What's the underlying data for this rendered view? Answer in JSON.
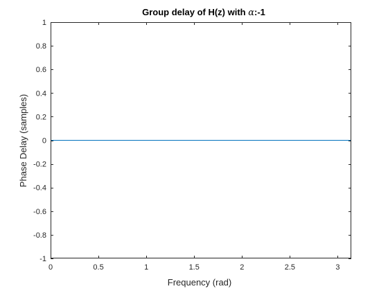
{
  "chart_data": {
    "type": "line",
    "title_prefix": "Group delay of H(z) with ",
    "title_symbol": "α",
    "title_suffix": ":-1",
    "xlabel": "Frequency (rad)",
    "ylabel": "Phase Delay (samples)",
    "xlim": [
      0,
      3.1416
    ],
    "ylim": [
      -1,
      1
    ],
    "x_ticks": [
      0,
      0.5,
      1,
      1.5,
      2,
      2.5,
      3
    ],
    "x_tick_labels": [
      "0",
      "0.5",
      "1",
      "1.5",
      "2",
      "2.5",
      "3"
    ],
    "y_ticks": [
      -1,
      -0.8,
      -0.6,
      -0.4,
      -0.2,
      0,
      0.2,
      0.4,
      0.6,
      0.8,
      1
    ],
    "y_tick_labels": [
      "-1",
      "-0.8",
      "-0.6",
      "-0.4",
      "-0.2",
      "0",
      "0.2",
      "0.4",
      "0.6",
      "0.8",
      "1"
    ],
    "grid": false,
    "series": [
      {
        "color": "#0072BD",
        "x": [
          0,
          0.5,
          1,
          1.5,
          2,
          2.5,
          3,
          3.1416
        ],
        "y": [
          0,
          0,
          0,
          0,
          0,
          0,
          0,
          0
        ]
      }
    ],
    "axis_color": "#262626"
  }
}
